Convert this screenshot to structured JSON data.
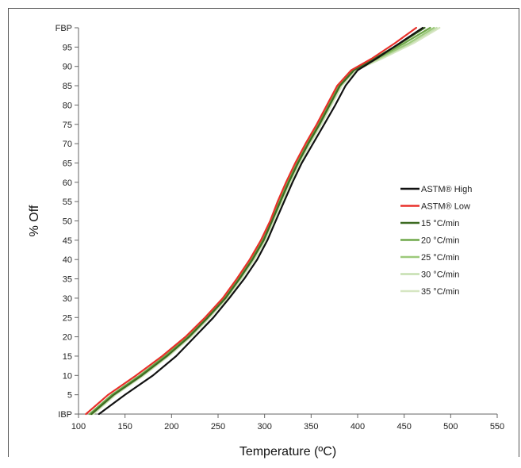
{
  "chart_data": {
    "type": "line",
    "xlabel": "Temperature (ºC)",
    "ylabel": "% Off",
    "xlim": [
      100,
      550
    ],
    "ylim": [
      0,
      100
    ],
    "x_ticks": [
      "100",
      "150",
      "200",
      "250",
      "300",
      "350",
      "400",
      "450",
      "500",
      "550"
    ],
    "y_ticks": [
      {
        "value": 0,
        "label": "IBP"
      },
      {
        "value": 5,
        "label": "5"
      },
      {
        "value": 10,
        "label": "10"
      },
      {
        "value": 15,
        "label": "15"
      },
      {
        "value": 20,
        "label": "20"
      },
      {
        "value": 25,
        "label": "25"
      },
      {
        "value": 30,
        "label": "30"
      },
      {
        "value": 35,
        "label": "35"
      },
      {
        "value": 40,
        "label": "40"
      },
      {
        "value": 45,
        "label": "45"
      },
      {
        "value": 50,
        "label": "50"
      },
      {
        "value": 55,
        "label": "55"
      },
      {
        "value": 60,
        "label": "60"
      },
      {
        "value": 65,
        "label": "65"
      },
      {
        "value": 70,
        "label": "70"
      },
      {
        "value": 75,
        "label": "75"
      },
      {
        "value": 80,
        "label": "80"
      },
      {
        "value": 85,
        "label": "85"
      },
      {
        "value": 90,
        "label": "90"
      },
      {
        "value": 95,
        "label": "95"
      },
      {
        "value": 100,
        "label": "FBP"
      }
    ],
    "grid": false,
    "legend_position": "right",
    "series": [
      {
        "name": "ASTM® High",
        "color": "#111111",
        "points": [
          [
            122,
            0
          ],
          [
            150,
            5
          ],
          [
            180,
            10
          ],
          [
            205,
            15
          ],
          [
            225,
            20
          ],
          [
            245,
            25
          ],
          [
            262,
            30
          ],
          [
            278,
            35
          ],
          [
            292,
            40
          ],
          [
            303,
            45
          ],
          [
            312,
            50
          ],
          [
            321,
            55
          ],
          [
            330,
            60
          ],
          [
            340,
            65
          ],
          [
            352,
            70
          ],
          [
            364,
            75
          ],
          [
            376,
            80
          ],
          [
            387,
            85
          ],
          [
            400,
            89
          ],
          [
            420,
            92
          ],
          [
            445,
            96
          ],
          [
            470,
            100
          ]
        ]
      },
      {
        "name": "ASTM® Low",
        "color": "#e8302a",
        "points": [
          [
            108,
            0
          ],
          [
            132,
            5
          ],
          [
            162,
            10
          ],
          [
            190,
            15
          ],
          [
            215,
            20
          ],
          [
            236,
            25
          ],
          [
            255,
            30
          ],
          [
            270,
            35
          ],
          [
            284,
            40
          ],
          [
            296,
            45
          ],
          [
            306,
            50
          ],
          [
            314,
            55
          ],
          [
            323,
            60
          ],
          [
            333,
            65
          ],
          [
            344,
            70
          ],
          [
            356,
            75
          ],
          [
            367,
            80
          ],
          [
            378,
            85
          ],
          [
            393,
            89
          ],
          [
            415,
            92
          ],
          [
            440,
            96
          ],
          [
            463,
            100
          ]
        ]
      },
      {
        "name": "15 °C/min",
        "color": "#3d6b22",
        "points": [
          [
            114,
            0
          ],
          [
            138,
            5
          ],
          [
            168,
            10
          ],
          [
            195,
            15
          ],
          [
            219,
            20
          ],
          [
            239,
            25
          ],
          [
            258,
            30
          ],
          [
            273,
            35
          ],
          [
            287,
            40
          ],
          [
            299,
            45
          ],
          [
            308,
            50
          ],
          [
            317,
            55
          ],
          [
            326,
            60
          ],
          [
            336,
            65
          ],
          [
            347,
            70
          ],
          [
            359,
            75
          ],
          [
            370,
            80
          ],
          [
            381,
            85
          ],
          [
            396,
            89
          ],
          [
            418,
            92
          ],
          [
            446,
            96
          ],
          [
            472,
            100
          ]
        ]
      },
      {
        "name": "20 °C/min",
        "color": "#6fa84a",
        "points": [
          [
            112,
            0
          ],
          [
            136,
            5
          ],
          [
            166,
            10
          ],
          [
            193,
            15
          ],
          [
            217,
            20
          ],
          [
            238,
            25
          ],
          [
            257,
            30
          ],
          [
            272,
            35
          ],
          [
            286,
            40
          ],
          [
            298,
            45
          ],
          [
            307,
            50
          ],
          [
            316,
            55
          ],
          [
            325,
            60
          ],
          [
            335,
            65
          ],
          [
            346,
            70
          ],
          [
            358,
            75
          ],
          [
            369,
            80
          ],
          [
            380,
            85
          ],
          [
            395,
            89
          ],
          [
            420,
            92
          ],
          [
            450,
            96
          ],
          [
            478,
            100
          ]
        ]
      },
      {
        "name": "25 °C/min",
        "color": "#9cc97a",
        "points": [
          [
            113,
            0
          ],
          [
            137,
            5
          ],
          [
            167,
            10
          ],
          [
            194,
            15
          ],
          [
            218,
            20
          ],
          [
            239,
            25
          ],
          [
            258,
            30
          ],
          [
            273,
            35
          ],
          [
            287,
            40
          ],
          [
            299,
            45
          ],
          [
            308,
            50
          ],
          [
            317,
            55
          ],
          [
            326,
            60
          ],
          [
            336,
            65
          ],
          [
            347,
            70
          ],
          [
            359,
            75
          ],
          [
            370,
            80
          ],
          [
            381,
            85
          ],
          [
            396,
            89
          ],
          [
            422,
            92
          ],
          [
            455,
            96
          ],
          [
            482,
            100
          ]
        ]
      },
      {
        "name": "30 °C/min",
        "color": "#c5dfb0",
        "points": [
          [
            115,
            0
          ],
          [
            139,
            5
          ],
          [
            169,
            10
          ],
          [
            196,
            15
          ],
          [
            220,
            20
          ],
          [
            240,
            25
          ],
          [
            259,
            30
          ],
          [
            274,
            35
          ],
          [
            288,
            40
          ],
          [
            300,
            45
          ],
          [
            309,
            50
          ],
          [
            318,
            55
          ],
          [
            327,
            60
          ],
          [
            337,
            65
          ],
          [
            348,
            70
          ],
          [
            360,
            75
          ],
          [
            371,
            80
          ],
          [
            382,
            85
          ],
          [
            397,
            89
          ],
          [
            424,
            92
          ],
          [
            457,
            96
          ],
          [
            485,
            100
          ]
        ]
      },
      {
        "name": "35 °C/min",
        "color": "#d6e6c2",
        "points": [
          [
            116,
            0
          ],
          [
            140,
            5
          ],
          [
            170,
            10
          ],
          [
            197,
            15
          ],
          [
            221,
            20
          ],
          [
            241,
            25
          ],
          [
            260,
            30
          ],
          [
            275,
            35
          ],
          [
            289,
            40
          ],
          [
            301,
            45
          ],
          [
            310,
            50
          ],
          [
            319,
            55
          ],
          [
            328,
            60
          ],
          [
            338,
            65
          ],
          [
            349,
            70
          ],
          [
            361,
            75
          ],
          [
            372,
            80
          ],
          [
            383,
            85
          ],
          [
            398,
            89
          ],
          [
            426,
            92
          ],
          [
            460,
            96
          ],
          [
            488,
            100
          ]
        ]
      }
    ]
  }
}
